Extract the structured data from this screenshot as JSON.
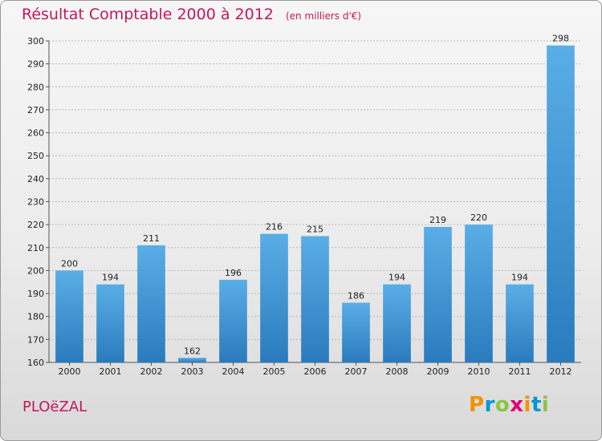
{
  "title": "Résultat Comptable 2000 à 2012",
  "subtitle": "(en milliers d'€)",
  "town": "PLOëZAL",
  "logo": {
    "text": "Proxiti",
    "letters": [
      {
        "ch": "P",
        "color": "#f39200"
      },
      {
        "ch": "r",
        "color": "#0095d9"
      },
      {
        "ch": "o",
        "color": "#8bc53f"
      },
      {
        "ch": "x",
        "color": "#e2007a"
      },
      {
        "ch": "i",
        "color": "#f39200"
      },
      {
        "ch": "t",
        "color": "#0095d9"
      },
      {
        "ch": "i",
        "color": "#8bc53f"
      }
    ]
  },
  "colors": {
    "title": "#c2185b",
    "bar_top": "#5aaee6",
    "bar_bottom": "#2a7bbd",
    "grid": "#b8b8b8",
    "axis": "#555555"
  },
  "chart_data": {
    "type": "bar",
    "title": "Résultat Comptable 2000 à 2012",
    "subtitle": "(en milliers d'€)",
    "xlabel": "",
    "ylabel": "",
    "categories": [
      "2000",
      "2001",
      "2002",
      "2003",
      "2004",
      "2005",
      "2006",
      "2007",
      "2008",
      "2009",
      "2010",
      "2011",
      "2012"
    ],
    "values": [
      200,
      194,
      211,
      162,
      196,
      216,
      215,
      186,
      194,
      219,
      220,
      194,
      298
    ],
    "ylim": [
      160,
      300
    ],
    "yticks": [
      160,
      170,
      180,
      190,
      200,
      210,
      220,
      230,
      240,
      250,
      260,
      270,
      280,
      290,
      300
    ],
    "grid": true,
    "data_labels": true
  }
}
